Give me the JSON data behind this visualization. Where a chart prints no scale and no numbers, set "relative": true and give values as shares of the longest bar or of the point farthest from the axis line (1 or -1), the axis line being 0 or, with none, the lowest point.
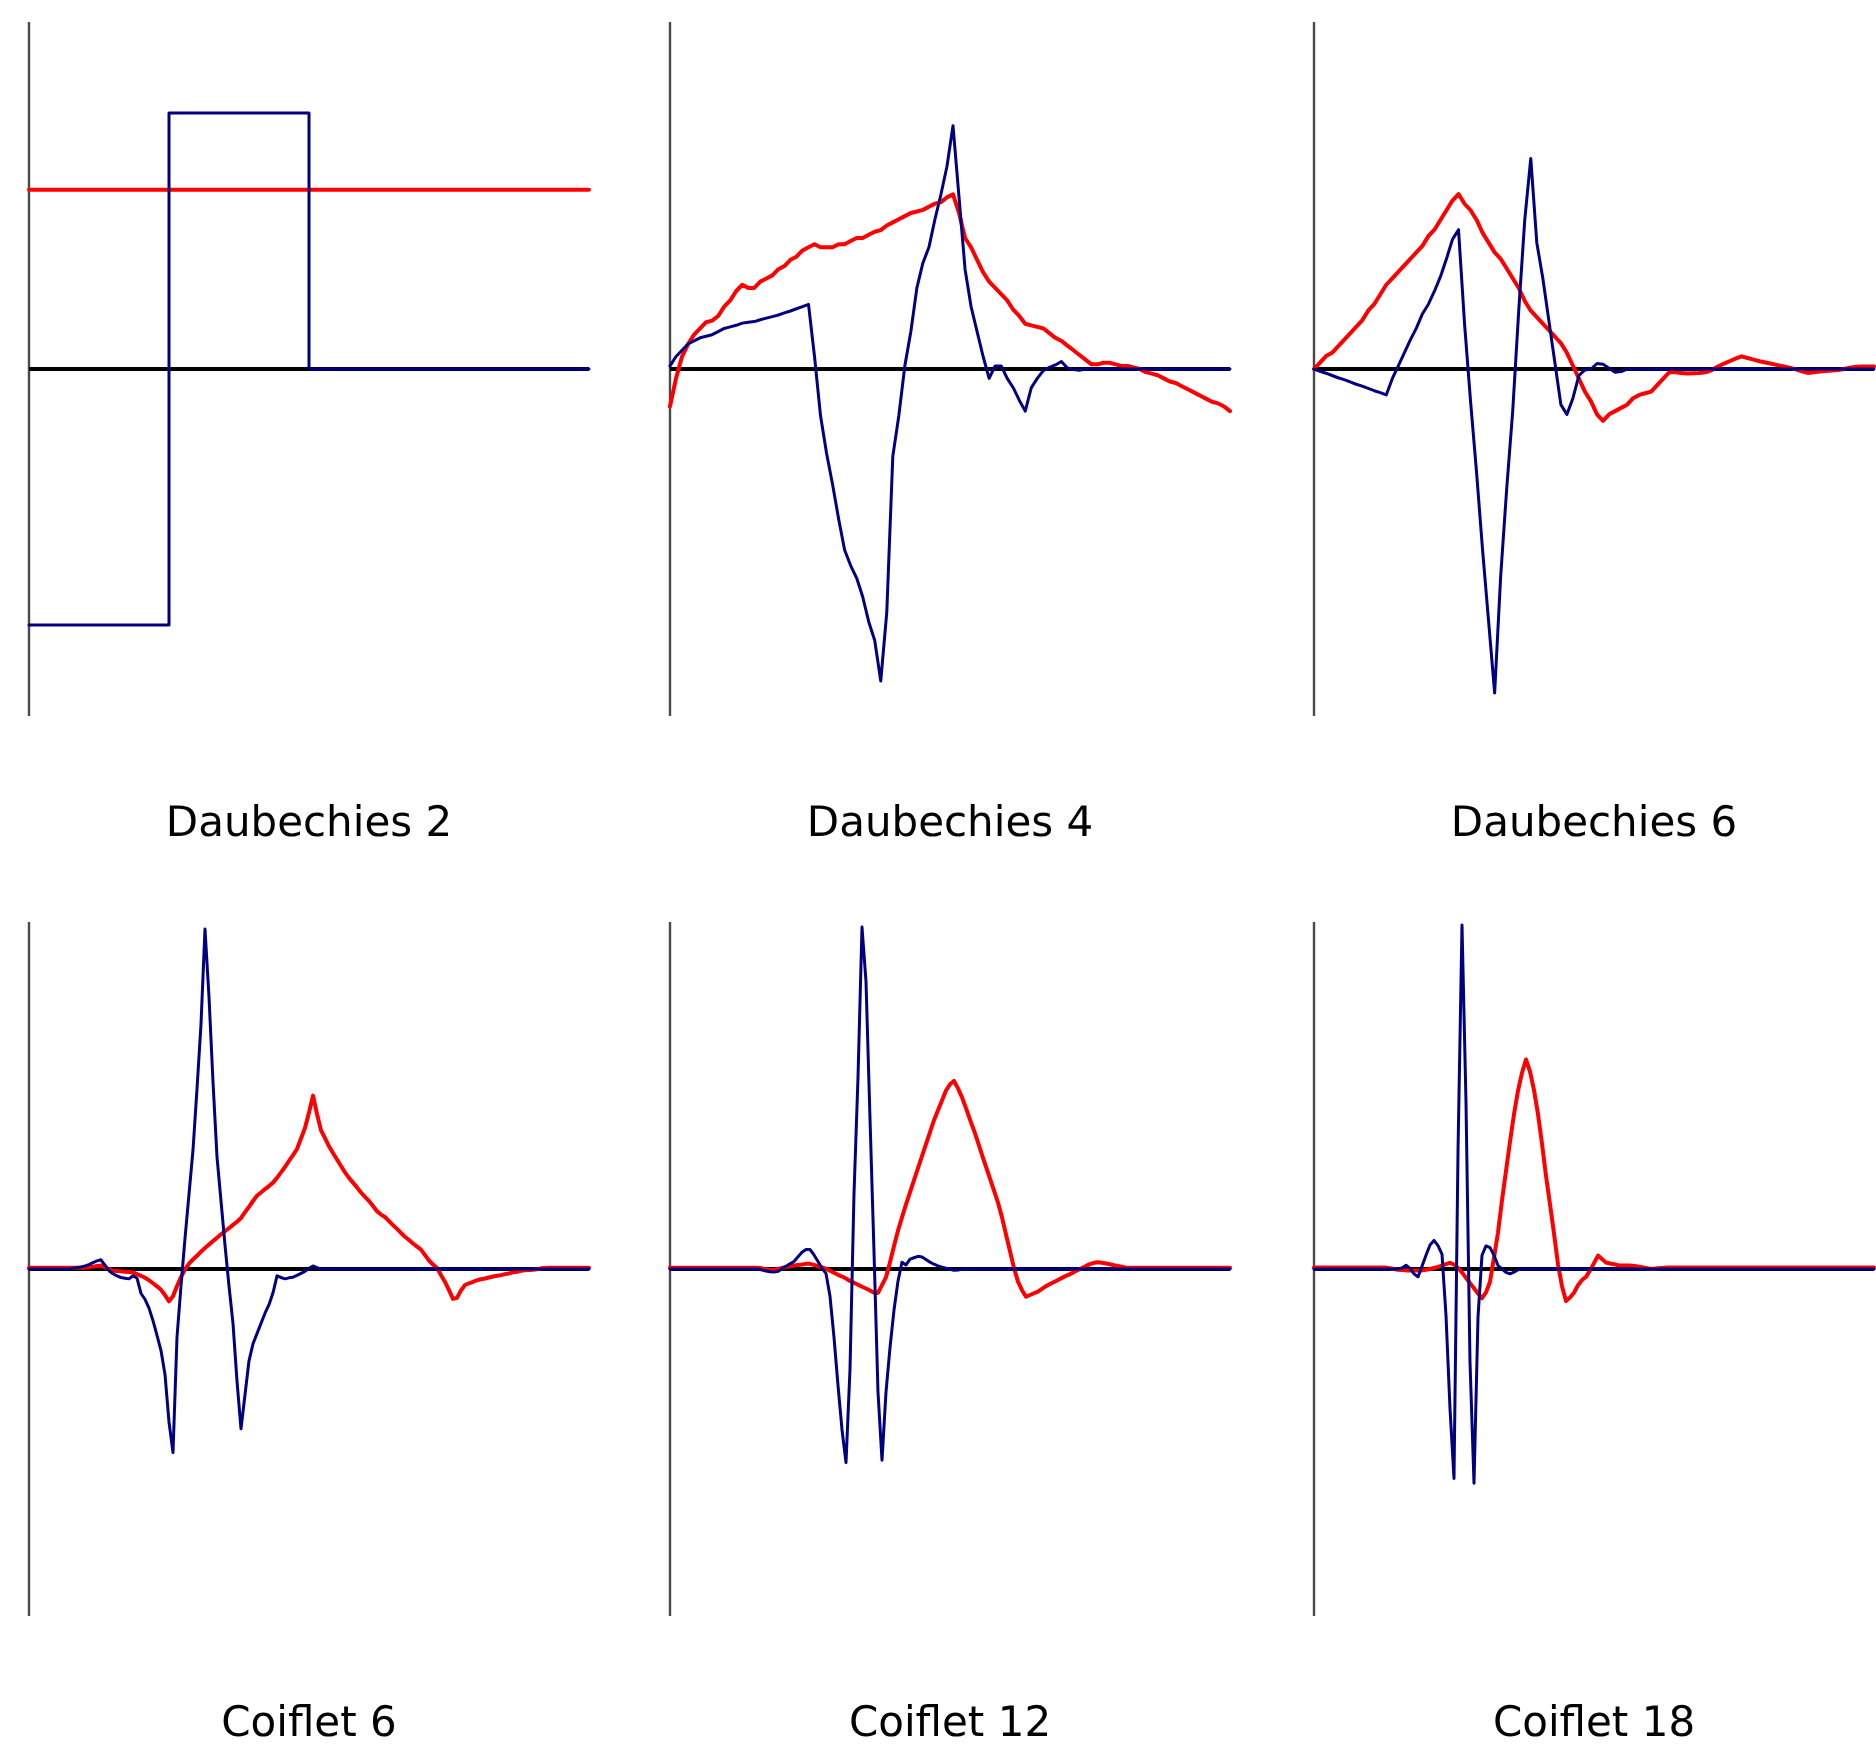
{
  "chart_data": [
    {
      "type": "step",
      "title": "Daubechies 2",
      "relative": true,
      "categories": [
        null,
        null,
        null,
        null,
        null
      ],
      "series": [
        {
          "color": "#ff0000",
          "values": [
            0.7,
            0.7,
            0.7,
            0.7,
            0.7
          ]
        },
        {
          "color": "#000080",
          "values": [
            -1,
            1,
            0,
            0,
            0
          ]
        }
      ]
    },
    {
      "type": "line",
      "title": "Daubechies 4",
      "relative": true,
      "categories": [
        null,
        null,
        null,
        null,
        null,
        null,
        null,
        null,
        null,
        null,
        null,
        null,
        null,
        null,
        null,
        null,
        null,
        null,
        null,
        null,
        null,
        null,
        null,
        null,
        null,
        null,
        null,
        null,
        null,
        null,
        null,
        null,
        null,
        null,
        null,
        null,
        null,
        null,
        null,
        null,
        null,
        null,
        null,
        null,
        null,
        null,
        null,
        null,
        null,
        null,
        null,
        null,
        null,
        null,
        null,
        null,
        null,
        null,
        null,
        null,
        null,
        null,
        null,
        null,
        null,
        null,
        null,
        null,
        null,
        null,
        null,
        null,
        null,
        null,
        null,
        null,
        null,
        null,
        null,
        null,
        null,
        null,
        null,
        null,
        null,
        null,
        null,
        null,
        null,
        null,
        null,
        null,
        null,
        null
      ],
      "series": [
        {
          "color": "#ff0000",
          "values": [
            -0.12,
            -0.03,
            0.04,
            0.08,
            0.11,
            0.13,
            0.15,
            0.155,
            0.17,
            0.2,
            0.22,
            0.25,
            0.27,
            0.26,
            0.26,
            0.28,
            0.29,
            0.3,
            0.32,
            0.33,
            0.35,
            0.36,
            0.38,
            0.39,
            0.4,
            0.39,
            0.39,
            0.39,
            0.4,
            0.4,
            0.41,
            0.42,
            0.42,
            0.43,
            0.44,
            0.445,
            0.46,
            0.47,
            0.48,
            0.49,
            0.5,
            0.505,
            0.51,
            0.52,
            0.53,
            0.535,
            0.55,
            0.56,
            0.5,
            0.42,
            0.39,
            0.35,
            0.31,
            0.28,
            0.26,
            0.24,
            0.22,
            0.19,
            0.17,
            0.145,
            0.14,
            0.135,
            0.13,
            0.115,
            0.1,
            0.09,
            0.075,
            0.06,
            0.045,
            0.03,
            0.015,
            0.015,
            0.02,
            0.02,
            0.015,
            0.01,
            0.01,
            0.005,
            0,
            -0.01,
            -0.015,
            -0.02,
            -0.03,
            -0.04,
            -0.045,
            -0.055,
            -0.065,
            -0.075,
            -0.085,
            -0.095,
            -0.105,
            -0.11,
            -0.12,
            -0.135
          ]
        },
        {
          "color": "#000080",
          "values": [
            0.01,
            0.04,
            0.06,
            0.08,
            0.09,
            0.1,
            0.105,
            0.11,
            0.12,
            0.13,
            0.135,
            0.14,
            0.147,
            0.15,
            0.152,
            0.158,
            0.163,
            0.168,
            0.173,
            0.18,
            0.186,
            0.193,
            0.2,
            0.207,
            0.04,
            -0.15,
            -0.27,
            -0.37,
            -0.48,
            -0.58,
            -0.63,
            -0.67,
            -0.73,
            -0.81,
            -0.87,
            -1,
            -0.78,
            -0.28,
            -0.15,
            0.01,
            0.12,
            0.26,
            0.34,
            0.39,
            0.48,
            0.56,
            0.65,
            0.78,
            0.55,
            0.32,
            0.2,
            0.12,
            0.04,
            -0.03,
            0.01,
            0.01,
            -0.03,
            -0.06,
            -0.1,
            -0.135,
            -0.06,
            -0.03,
            -0.005,
            0.005,
            0.013,
            0.024,
            0.003,
            -0.002,
            -0.004,
            0,
            0,
            0,
            0,
            0,
            0,
            0,
            0,
            0,
            0,
            0,
            0,
            0,
            0,
            0,
            0,
            0,
            0,
            0,
            0,
            0,
            0,
            0,
            0,
            0
          ]
        }
      ]
    },
    {
      "type": "line",
      "title": "Daubechies 6",
      "relative": true,
      "categories": [
        null,
        null,
        null,
        null,
        null,
        null,
        null,
        null,
        null,
        null,
        null,
        null,
        null,
        null,
        null,
        null,
        null,
        null,
        null,
        null,
        null,
        null,
        null,
        null,
        null,
        null,
        null,
        null,
        null,
        null,
        null,
        null,
        null,
        null,
        null,
        null,
        null,
        null,
        null,
        null,
        null,
        null,
        null,
        null,
        null,
        null,
        null,
        null,
        null,
        null,
        null,
        null,
        null,
        null,
        null,
        null,
        null,
        null,
        null,
        null,
        null,
        null,
        null,
        null,
        null,
        null,
        null,
        null,
        null,
        null,
        null,
        null,
        null,
        null,
        null,
        null,
        null,
        null,
        null,
        null,
        null,
        null,
        null,
        null,
        null,
        null,
        null,
        null,
        null,
        null,
        null,
        null,
        null,
        null
      ],
      "series": [
        {
          "color": "#ff0000",
          "values": [
            0,
            0.02,
            0.04,
            0.05,
            0.07,
            0.09,
            0.11,
            0.13,
            0.15,
            0.18,
            0.2,
            0.23,
            0.26,
            0.28,
            0.3,
            0.32,
            0.34,
            0.36,
            0.38,
            0.41,
            0.43,
            0.46,
            0.49,
            0.52,
            0.54,
            0.51,
            0.49,
            0.46,
            0.42,
            0.39,
            0.36,
            0.34,
            0.31,
            0.28,
            0.25,
            0.21,
            0.18,
            0.16,
            0.14,
            0.12,
            0.1,
            0.08,
            0.05,
            0.01,
            -0.03,
            -0.07,
            -0.1,
            -0.14,
            -0.16,
            -0.14,
            -0.13,
            -0.12,
            -0.11,
            -0.09,
            -0.08,
            -0.075,
            -0.07,
            -0.05,
            -0.03,
            -0.01,
            -0.01,
            -0.012,
            -0.014,
            -0.013,
            -0.012,
            -0.01,
            -0.004,
            0.007,
            0.016,
            0.024,
            0.032,
            0.039,
            0.034,
            0.029,
            0.024,
            0.02,
            0.016,
            0.012,
            0.008,
            0.004,
            -0.001,
            -0.007,
            -0.012,
            -0.01,
            -0.008,
            -0.006,
            -0.005,
            -0.003,
            0,
            0.004,
            0.007,
            0.008,
            0.008,
            0.008
          ]
        },
        {
          "color": "#000080",
          "values": [
            0,
            -0.007,
            -0.013,
            -0.02,
            -0.027,
            -0.033,
            -0.04,
            -0.047,
            -0.053,
            -0.06,
            -0.067,
            -0.073,
            -0.08,
            -0.03,
            0.01,
            0.05,
            0.09,
            0.126,
            0.17,
            0.2,
            0.24,
            0.285,
            0.34,
            0.4,
            0.43,
            0.14,
            -0.1,
            -0.32,
            -0.56,
            -0.78,
            -1,
            -0.64,
            -0.37,
            -0.13,
            0.18,
            0.46,
            0.65,
            0.39,
            0.28,
            0.15,
            0.02,
            -0.11,
            -0.14,
            -0.09,
            -0.02,
            -0.003,
            0,
            0.017,
            0.015,
            0.002,
            -0.01,
            -0.008,
            0,
            0,
            0,
            0,
            0,
            0,
            0,
            0,
            0,
            0,
            0,
            0,
            0,
            0,
            0,
            0,
            0,
            0,
            0,
            0,
            0,
            0,
            0,
            0,
            0,
            0,
            0,
            0,
            0,
            0,
            0,
            0,
            0,
            0,
            0,
            0,
            0,
            0,
            0,
            0,
            0,
            0
          ]
        }
      ]
    },
    {
      "type": "line",
      "title": "Coiflet 6",
      "relative": true,
      "categories": [
        null,
        null,
        null,
        null,
        null,
        null,
        null,
        null,
        null,
        null,
        null,
        null,
        null,
        null,
        null,
        null,
        null,
        null,
        null,
        null,
        null,
        null,
        null,
        null,
        null,
        null,
        null,
        null,
        null,
        null,
        null,
        null,
        null,
        null,
        null,
        null,
        null,
        null,
        null,
        null,
        null,
        null,
        null,
        null,
        null,
        null,
        null,
        null,
        null,
        null,
        null,
        null,
        null,
        null,
        null,
        null,
        null,
        null,
        null,
        null,
        null,
        null,
        null,
        null,
        null,
        null,
        null,
        null,
        null,
        null,
        null,
        null,
        null,
        null,
        null,
        null,
        null,
        null,
        null,
        null,
        null,
        null,
        null,
        null,
        null,
        null,
        null,
        null,
        null,
        null,
        null,
        null,
        null,
        null,
        null,
        null,
        null,
        null,
        null,
        null,
        null,
        null,
        null,
        null,
        null,
        null,
        null,
        null,
        null,
        null,
        null,
        null,
        null,
        null,
        null,
        null,
        null,
        null,
        null,
        null,
        null,
        null,
        null,
        null,
        null,
        null,
        null,
        null,
        null,
        null,
        null,
        null,
        null,
        null,
        null,
        null,
        null,
        null,
        null,
        null,
        null
      ],
      "series": [
        {
          "color": "#ff0000",
          "values": [
            0.004,
            0.004,
            0.004,
            0.004,
            0.004,
            0.004,
            0.004,
            0.004,
            0.004,
            0.004,
            0.004,
            0.004,
            0.004,
            0.004,
            0.004,
            0.006,
            0.007,
            0.009,
            0.01,
            0.005,
            0,
            -0.005,
            -0.006,
            -0.007,
            -0.008,
            -0.009,
            -0.01,
            -0.015,
            -0.02,
            -0.026,
            -0.033,
            -0.042,
            -0.051,
            -0.061,
            -0.077,
            -0.095,
            -0.08,
            -0.05,
            -0.024,
            -0.001,
            0.016,
            0.028,
            0.039,
            0.051,
            0.062,
            0.072,
            0.082,
            0.092,
            0.102,
            0.111,
            0.12,
            0.13,
            0.139,
            0.15,
            0.167,
            0.183,
            0.2,
            0.216,
            0.225,
            0.235,
            0.244,
            0.254,
            0.268,
            0.284,
            0.3,
            0.318,
            0.335,
            0.353,
            0.384,
            0.415,
            0.46,
            0.51,
            0.456,
            0.408,
            0.385,
            0.361,
            0.341,
            0.322,
            0.303,
            0.284,
            0.268,
            0.254,
            0.24,
            0.225,
            0.212,
            0.2,
            0.185,
            0.17,
            0.16,
            0.153,
            0.141,
            0.129,
            0.118,
            0.106,
            0.095,
            0.085,
            0.075,
            0.066,
            0.057,
            0.041,
            0.025,
            0.013,
            0.003,
            -0.018,
            -0.038,
            -0.062,
            -0.088,
            -0.085,
            -0.063,
            -0.047,
            -0.042,
            -0.038,
            -0.033,
            -0.03,
            -0.028,
            -0.025,
            -0.022,
            -0.02,
            -0.018,
            -0.015,
            -0.013,
            -0.01,
            -0.008,
            -0.005,
            -0.004,
            -0.003,
            -0.002,
            -0.001,
            0.002,
            0.003,
            0.004,
            0.004,
            0.004,
            0.004,
            0.004,
            0.004,
            0.004,
            0.004,
            0.004,
            0.004,
            0.004
          ]
        },
        {
          "color": "#000080",
          "values": [
            0,
            0,
            0,
            0,
            0,
            0,
            0,
            0,
            0,
            0,
            0,
            0.002,
            0.004,
            0.006,
            0.009,
            0.013,
            0.019,
            0.024,
            0.027,
            0.011,
            -0.005,
            -0.014,
            -0.02,
            -0.025,
            -0.027,
            -0.029,
            -0.02,
            -0.027,
            -0.072,
            -0.089,
            -0.115,
            -0.152,
            -0.195,
            -0.24,
            -0.31,
            -0.45,
            -0.54,
            -0.2,
            -0.05,
            0.09,
            0.22,
            0.35,
            0.53,
            0.72,
            1,
            0.8,
            0.55,
            0.33,
            0.2,
            0.07,
            -0.05,
            -0.16,
            -0.33,
            -0.47,
            -0.37,
            -0.27,
            -0.22,
            -0.19,
            -0.16,
            -0.13,
            -0.105,
            -0.07,
            -0.02,
            -0.025,
            -0.029,
            -0.026,
            -0.024,
            -0.019,
            -0.013,
            -0.007,
            0.002,
            0.009,
            0.004,
            0,
            0,
            0,
            0,
            0,
            0,
            0,
            0,
            0,
            0,
            0,
            0,
            0,
            0,
            0,
            0,
            0,
            0,
            0,
            0,
            0,
            0,
            0,
            0,
            0,
            0,
            0,
            0,
            0,
            0,
            0,
            0,
            0,
            0,
            0,
            0,
            0,
            0,
            0,
            0,
            0,
            0,
            0,
            0,
            0,
            0,
            0,
            0,
            0,
            0,
            0,
            0,
            0,
            0,
            0,
            0,
            0,
            0,
            0,
            0,
            0,
            0,
            0,
            0,
            0,
            0,
            0,
            0
          ]
        }
      ]
    },
    {
      "type": "line",
      "title": "Coiflet 12",
      "relative": true,
      "categories": [
        null,
        null,
        null,
        null,
        null,
        null,
        null,
        null,
        null,
        null,
        null,
        null,
        null,
        null,
        null,
        null,
        null,
        null,
        null,
        null,
        null,
        null,
        null,
        null,
        null,
        null,
        null,
        null,
        null,
        null,
        null,
        null,
        null,
        null,
        null,
        null,
        null,
        null,
        null,
        null,
        null,
        null,
        null,
        null,
        null,
        null,
        null,
        null,
        null,
        null,
        null,
        null,
        null,
        null,
        null,
        null,
        null,
        null,
        null,
        null,
        null,
        null,
        null,
        null,
        null,
        null,
        null,
        null,
        null,
        null,
        null,
        null,
        null,
        null,
        null,
        null,
        null,
        null,
        null,
        null,
        null,
        null,
        null,
        null,
        null,
        null,
        null,
        null,
        null,
        null,
        null,
        null,
        null,
        null,
        null,
        null,
        null,
        null,
        null,
        null,
        null,
        null,
        null,
        null,
        null,
        null,
        null,
        null,
        null,
        null,
        null,
        null,
        null,
        null,
        null,
        null,
        null,
        null,
        null,
        null,
        null,
        null,
        null,
        null,
        null,
        null,
        null,
        null,
        null,
        null,
        null,
        null,
        null,
        null,
        null,
        null,
        null,
        null,
        null,
        null,
        null
      ],
      "series": [
        {
          "color": "#ff0000",
          "values": [
            0.004,
            0.004,
            0.004,
            0.004,
            0.004,
            0.004,
            0.004,
            0.004,
            0.004,
            0.004,
            0.004,
            0.004,
            0.004,
            0.004,
            0.004,
            0.004,
            0.004,
            0.004,
            0.004,
            0.004,
            0.004,
            0.004,
            0.004,
            0.002,
            -0.001,
            -0.003,
            -0.003,
            0,
            0.003,
            0.006,
            0.008,
            0.01,
            0.012,
            0.013,
            0.015,
            0.015,
            0.012,
            0.008,
            0.005,
            0.001,
            -0.005,
            -0.011,
            -0.017,
            -0.022,
            -0.028,
            -0.035,
            -0.04,
            -0.046,
            -0.052,
            -0.057,
            -0.063,
            -0.069,
            -0.07,
            -0.047,
            -0.024,
            0.02,
            0.067,
            0.112,
            0.151,
            0.189,
            0.224,
            0.26,
            0.295,
            0.33,
            0.365,
            0.4,
            0.435,
            0.464,
            0.493,
            0.522,
            0.54,
            0.55,
            0.528,
            0.502,
            0.47,
            0.437,
            0.405,
            0.37,
            0.334,
            0.299,
            0.264,
            0.229,
            0.194,
            0.151,
            0.101,
            0.052,
            0.003,
            -0.037,
            -0.062,
            -0.081,
            -0.076,
            -0.071,
            -0.066,
            -0.058,
            -0.05,
            -0.044,
            -0.038,
            -0.032,
            -0.026,
            -0.02,
            -0.015,
            -0.009,
            -0.003,
            0.003,
            0.009,
            0.014,
            0.018,
            0.02,
            0.018,
            0.016,
            0.014,
            0.011,
            0.009,
            0.007,
            0.004,
            0.004,
            0.004,
            0.004,
            0.004,
            0.004,
            0.004,
            0.004,
            0.004,
            0.004,
            0.004,
            0.004,
            0.004,
            0.004,
            0.004,
            0.004,
            0.004,
            0.004,
            0.004,
            0.004,
            0.004,
            0.004,
            0.004,
            0.004,
            0.004,
            0.004,
            0.004
          ]
        },
        {
          "color": "#000080",
          "values": [
            0,
            0,
            0,
            0,
            0,
            0,
            0,
            0,
            0,
            0,
            0,
            0,
            0,
            0,
            0,
            0,
            0,
            0,
            0,
            0,
            0,
            0,
            0,
            -0.003,
            -0.006,
            -0.008,
            -0.009,
            -0.007,
            0.001,
            0.008,
            0.015,
            0.022,
            0.036,
            0.049,
            0.057,
            0.057,
            0.041,
            0.022,
            0.002,
            -0.013,
            -0.08,
            -0.2,
            -0.34,
            -0.47,
            -0.566,
            -0.293,
            0.22,
            0.56,
            1,
            0.84,
            0.44,
            0.05,
            -0.36,
            -0.559,
            -0.36,
            -0.23,
            -0.12,
            -0.035,
            0.02,
            0.012,
            0.029,
            0.033,
            0.037,
            0.035,
            0.028,
            0.02,
            0.014,
            0.009,
            0.005,
            0.002,
            -0.001,
            -0.004,
            -0.003,
            -0.001,
            0,
            0,
            0,
            0,
            0,
            0,
            0,
            0,
            0,
            0,
            0,
            0,
            0,
            0,
            0,
            0,
            0,
            0,
            0,
            0,
            0,
            0,
            0,
            0,
            0,
            0,
            0,
            0,
            0,
            0,
            0,
            0,
            0,
            0,
            0,
            0,
            0,
            0,
            0,
            0,
            0,
            0,
            0,
            0,
            0,
            0,
            0,
            0,
            0,
            0,
            0,
            0,
            0,
            0,
            0,
            0,
            0,
            0,
            0,
            0,
            0,
            0,
            0,
            0,
            0,
            0,
            0
          ]
        }
      ]
    },
    {
      "type": "line",
      "title": "Coiflet 18",
      "relative": true,
      "categories": [
        null,
        null,
        null,
        null,
        null,
        null,
        null,
        null,
        null,
        null,
        null,
        null,
        null,
        null,
        null,
        null,
        null,
        null,
        null,
        null,
        null,
        null,
        null,
        null,
        null,
        null,
        null,
        null,
        null,
        null,
        null,
        null,
        null,
        null,
        null,
        null,
        null,
        null,
        null,
        null,
        null,
        null,
        null,
        null,
        null,
        null,
        null,
        null,
        null,
        null,
        null,
        null,
        null,
        null,
        null,
        null,
        null,
        null,
        null,
        null,
        null,
        null,
        null,
        null,
        null,
        null,
        null,
        null,
        null,
        null,
        null,
        null,
        null,
        null,
        null,
        null,
        null,
        null,
        null,
        null,
        null,
        null,
        null,
        null,
        null,
        null,
        null,
        null,
        null,
        null,
        null,
        null,
        null,
        null,
        null,
        null,
        null,
        null,
        null,
        null,
        null,
        null,
        null,
        null,
        null,
        null,
        null,
        null,
        null,
        null,
        null,
        null,
        null,
        null,
        null,
        null,
        null,
        null,
        null,
        null,
        null,
        null,
        null,
        null,
        null,
        null,
        null,
        null,
        null,
        null,
        null,
        null,
        null,
        null,
        null,
        null,
        null,
        null,
        null,
        null,
        null
      ],
      "series": [
        {
          "color": "#ff0000",
          "values": [
            0.004,
            0.004,
            0.004,
            0.004,
            0.004,
            0.004,
            0.004,
            0.004,
            0.004,
            0.004,
            0.004,
            0.004,
            0.004,
            0.004,
            0.004,
            0.004,
            0.004,
            0.004,
            0.004,
            0.002,
            0,
            -0.002,
            -0.003,
            -0.004,
            -0.004,
            -0.004,
            -0.004,
            -0.004,
            -0.002,
            0,
            0.003,
            0.006,
            0.01,
            0.014,
            0.018,
            0.013,
            0.003,
            -0.01,
            -0.026,
            -0.041,
            -0.056,
            -0.071,
            -0.085,
            -0.068,
            -0.037,
            0.033,
            0.106,
            0.2,
            0.285,
            0.37,
            0.45,
            0.518,
            0.57,
            0.609,
            0.574,
            0.52,
            0.45,
            0.364,
            0.271,
            0.188,
            0.103,
            0.013,
            -0.05,
            -0.093,
            -0.083,
            -0.069,
            -0.047,
            -0.032,
            -0.023,
            -0.004,
            0.017,
            0.039,
            0.029,
            0.019,
            0.016,
            0.014,
            0.011,
            0.01,
            0.01,
            0.01,
            0.009,
            0.007,
            0.005,
            0.003,
            0.001,
            0.001,
            0.002,
            0.003,
            0.004,
            0.004,
            0.004,
            0.004,
            0.004,
            0.004,
            0.004,
            0.004,
            0.004,
            0.004,
            0.004,
            0.004,
            0.004,
            0.004,
            0.004,
            0.004,
            0.004,
            0.004,
            0.004,
            0.004,
            0.004,
            0.004,
            0.004,
            0.004,
            0.004,
            0.004,
            0.004,
            0.004,
            0.004,
            0.004,
            0.004,
            0.004,
            0.004,
            0.004,
            0.004,
            0.004,
            0.004,
            0.004,
            0.004,
            0.004,
            0.004,
            0.004,
            0.004,
            0.004,
            0.004,
            0.004,
            0.004,
            0.004,
            0.004,
            0.004,
            0.004,
            0.004,
            0.004
          ]
        },
        {
          "color": "#000080",
          "values": [
            0,
            0,
            0,
            0,
            0,
            0,
            0,
            0,
            0,
            0,
            0,
            0,
            0,
            0,
            0,
            0,
            0,
            0,
            0,
            0,
            0,
            0,
            0.003,
            0.011,
            0.002,
            -0.014,
            -0.023,
            0.008,
            0.04,
            0.07,
            0.083,
            0.068,
            0.043,
            -0.135,
            -0.406,
            -0.609,
            0.34,
            1,
            0.484,
            -0.27,
            -0.623,
            -0.14,
            0.04,
            0.067,
            0.062,
            0.04,
            0.01,
            0,
            -0.01,
            -0.014,
            -0.009,
            -0.002,
            0,
            0,
            0,
            0,
            0,
            0,
            0,
            0,
            0,
            0,
            0,
            0,
            0,
            0,
            0,
            0,
            0,
            0,
            0,
            0,
            0,
            0,
            0,
            0,
            0,
            0,
            0,
            0,
            0,
            0,
            0,
            0,
            0,
            0,
            0,
            0,
            0,
            0,
            0,
            0,
            0,
            0,
            0,
            0,
            0,
            0,
            0,
            0,
            0,
            0,
            0,
            0,
            0,
            0,
            0,
            0,
            0,
            0,
            0,
            0,
            0,
            0,
            0,
            0,
            0,
            0,
            0,
            0,
            0,
            0,
            0,
            0,
            0,
            0,
            0,
            0,
            0,
            0,
            0,
            0,
            0,
            0,
            0,
            0,
            0,
            0,
            0,
            0,
            0
          ]
        }
      ]
    }
  ]
}
